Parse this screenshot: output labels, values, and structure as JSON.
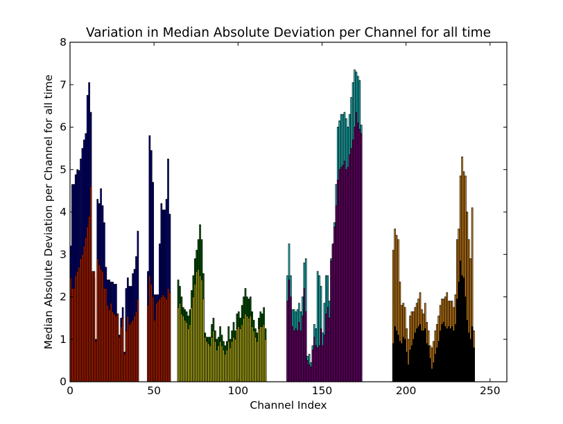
{
  "chart_data": {
    "type": "bar",
    "title": "Variation in Median Absolute Deviation per Channel for all time",
    "xlabel": "Channel Index",
    "ylabel": "Median Absolute Deviation per Channel for all time",
    "xlim": [
      0,
      260
    ],
    "ylim": [
      0,
      8
    ],
    "x_ticks": [
      "0",
      "50",
      "100",
      "150",
      "200",
      "250"
    ],
    "y_ticks": [
      "0",
      "1",
      "2",
      "3",
      "4",
      "5",
      "6",
      "7",
      "8"
    ],
    "grid": false,
    "legend": "none",
    "layers": [
      {
        "start": 0,
        "color": "#00008b",
        "values": [
          3.2,
          4.65,
          4.65,
          4.88,
          5.0,
          4.98,
          5.25,
          5.5,
          5.7,
          5.85,
          6.75,
          7.05,
          6.35,
          2.5,
          2.45,
          1.0,
          4.3,
          4.2,
          4.55,
          4.15,
          3.75,
          2.7,
          2.4,
          2.4,
          2.35,
          2.35,
          2.3,
          2.3,
          1.6,
          1.1,
          1.5,
          1.75,
          0.7,
          2.2,
          2.45,
          2.25,
          2.25,
          2.55,
          2.65,
          2.95,
          3.55,
          0,
          0,
          0,
          0,
          0,
          0,
          0,
          0,
          0,
          0,
          0,
          0,
          0,
          0,
          0,
          0,
          0,
          0,
          0,
          0,
          0,
          0,
          0,
          0,
          0,
          0,
          0,
          0,
          0,
          0,
          0,
          0,
          0,
          0,
          0,
          0,
          0,
          0,
          0,
          0,
          0,
          0,
          0,
          0,
          0,
          0,
          0,
          0,
          0,
          0,
          0,
          0,
          0,
          0,
          0,
          0,
          0,
          0,
          0,
          0,
          0,
          0,
          0,
          0,
          0,
          0,
          0,
          0,
          0,
          0,
          0,
          0,
          0,
          0,
          0,
          0,
          0,
          0,
          0,
          0,
          0,
          0,
          0,
          0,
          0,
          0,
          0,
          0,
          0,
          0,
          0,
          0,
          0,
          0,
          0,
          0,
          0,
          0,
          0,
          0,
          0,
          0,
          0,
          0,
          0,
          0,
          0,
          0,
          0,
          0,
          0,
          0,
          0,
          0,
          0,
          0,
          0,
          0,
          0,
          0,
          0,
          0,
          0,
          0,
          0,
          0,
          0,
          0,
          0,
          0,
          0,
          0,
          0,
          0,
          0,
          0,
          0,
          0,
          0,
          0,
          0,
          0,
          0,
          0,
          0,
          0,
          0,
          0,
          0,
          0,
          0,
          0,
          0,
          0,
          0,
          0,
          0,
          0,
          0,
          0,
          0,
          0,
          0,
          0,
          0,
          0,
          0,
          0,
          0,
          0,
          0,
          0,
          0,
          0,
          0,
          0,
          0,
          0,
          0,
          0,
          0,
          0,
          0,
          0,
          0,
          0,
          0,
          0,
          0,
          0,
          0,
          0,
          0,
          0,
          0,
          0,
          0,
          0,
          0,
          0,
          0,
          0,
          0,
          0,
          0,
          0,
          0,
          0,
          0,
          0,
          0,
          0,
          0,
          0,
          0,
          0,
          0,
          0,
          0,
          0,
          0,
          0,
          0,
          0,
          0,
          0,
          0,
          0,
          0,
          0,
          0,
          0,
          0,
          0,
          0,
          0,
          0,
          0,
          0,
          0,
          0,
          0,
          0,
          0,
          0,
          0,
          0,
          0,
          0,
          0,
          0,
          0
        ]
      },
      {
        "start": 46,
        "color": "#00008b",
        "values": [
          2.6,
          5.8,
          5.45,
          4.7,
          2.05,
          2.05,
          2.05,
          3.25,
          4.2,
          4.05,
          4.05,
          4.3,
          5.25,
          3.95
        ]
      },
      {
        "start": 0,
        "color": "#cc2200",
        "values": [
          2.45,
          2.2,
          2.2,
          2.5,
          2.6,
          2.7,
          2.9,
          3.0,
          3.2,
          3.4,
          3.65,
          3.9,
          4.6,
          2.6,
          2.6,
          0.95,
          2.9,
          2.75,
          2.65,
          2.6,
          2.2,
          2.2,
          1.8,
          1.7,
          1.85,
          1.65,
          1.6,
          1.55,
          1.6,
          1.05,
          1.3,
          1.5,
          0.65,
          1.2,
          1.55,
          1.35,
          1.4,
          1.45,
          1.55,
          1.65,
          1.95
        ]
      },
      {
        "start": 46,
        "color": "#cc2200",
        "values": [
          1.8,
          2.5,
          2.3,
          2.0,
          1.45,
          1.85,
          1.9,
          1.95,
          2.0,
          2.05,
          2.0,
          1.95,
          2.2,
          2.1
        ]
      },
      {
        "start": 64,
        "color": "#006400",
        "values": [
          2.4,
          2.25,
          2.0,
          1.75,
          1.7,
          1.65,
          1.55,
          1.7,
          2.15,
          2.5,
          2.9,
          3.1,
          3.35,
          3.7,
          3.35,
          2.55,
          1.15,
          1.05,
          1.05,
          1.05,
          1.35,
          1.5,
          1.2,
          1.0,
          1.05,
          1.3,
          1.1,
          0.95,
          0.85,
          0.95,
          1.3,
          1.0,
          1.2,
          1.4,
          1.2,
          1.6,
          1.65,
          1.5,
          1.8,
          2.0,
          2.2,
          2.0,
          1.95,
          2.0,
          1.65,
          1.45,
          1.25,
          1.15,
          1.5,
          1.65,
          1.6,
          1.75,
          1.25
        ]
      },
      {
        "start": 64,
        "color": "#c8c81e",
        "values": [
          1.75,
          1.85,
          1.6,
          1.55,
          1.45,
          1.4,
          1.25,
          1.35,
          1.75,
          2.0,
          2.3,
          2.6,
          2.65,
          2.5,
          2.4,
          1.95,
          1.05,
          0.95,
          0.9,
          0.85,
          1.05,
          1.2,
          0.95,
          0.75,
          0.85,
          0.95,
          0.85,
          0.75,
          0.65,
          0.75,
          0.95,
          0.8,
          0.95,
          1.05,
          1.0,
          1.25,
          1.3,
          1.25,
          1.35,
          1.5,
          1.6,
          1.55,
          1.5,
          1.55,
          1.3,
          1.2,
          1.05,
          0.95,
          1.25,
          1.3,
          1.3,
          1.35,
          1.0
        ]
      },
      {
        "start": 129,
        "color": "#22cccc",
        "values": [
          2.5,
          3.25,
          2.5,
          1.7,
          1.7,
          1.65,
          1.7,
          1.85,
          1.65,
          2.0,
          2.8,
          2.9,
          0.6,
          0.65,
          0.45,
          0.85,
          1.35,
          1.25,
          2.6,
          2.5,
          2.25,
          1.15,
          1.85,
          2.5,
          2.5,
          1.9,
          2.9,
          3.2,
          3.75,
          4.65,
          6.0,
          6.15,
          6.3,
          6.3,
          6.35,
          6.2,
          6.0,
          6.3,
          6.7,
          7.05,
          7.35,
          7.3,
          7.2,
          7.1,
          6.05
        ]
      },
      {
        "start": 129,
        "color": "#800080",
        "values": [
          1.9,
          2.4,
          2.0,
          1.3,
          1.2,
          1.25,
          1.2,
          1.4,
          1.2,
          1.55,
          2.2,
          1.65,
          0.5,
          0.4,
          0.35,
          0.75,
          1.05,
          0.85,
          0.8,
          0.85,
          1.25,
          0.85,
          1.1,
          1.6,
          1.75,
          1.5,
          2.85,
          3.25,
          3.65,
          4.15,
          4.75,
          5.0,
          5.05,
          5.1,
          5.2,
          5.0,
          5.05,
          5.35,
          5.5,
          5.7,
          6.0,
          6.35,
          6.1,
          5.95,
          5.85
        ]
      },
      {
        "start": 192,
        "color": "#e08c1a",
        "values": [
          3.1,
          3.6,
          3.45,
          3.35,
          2.35,
          1.8,
          1.85,
          1.75,
          1.25,
          1.0,
          1.55,
          1.65,
          1.65,
          1.75,
          1.85,
          1.95,
          2.1,
          1.7,
          1.6,
          1.85,
          1.4,
          1.2,
          0.85,
          0.8,
          0.95,
          1.2,
          1.35,
          1.55,
          1.8,
          1.95,
          1.95,
          2.0,
          2.1,
          1.9,
          1.9,
          1.9,
          1.75,
          2.05,
          3.35,
          3.6,
          4.85,
          5.3,
          4.95,
          4.85,
          4.0,
          3.35,
          2.9,
          4.1,
          1.2
        ]
      },
      {
        "start": 192,
        "color": "#000000",
        "values": [
          0.9,
          1.3,
          1.2,
          1.1,
          0.95,
          0.9,
          1.05,
          1.0,
          0.7,
          0.4,
          0.75,
          0.85,
          1.0,
          1.15,
          1.25,
          1.3,
          1.35,
          1.2,
          1.2,
          1.25,
          0.9,
          0.85,
          0.55,
          0.3,
          0.45,
          0.65,
          0.8,
          0.95,
          1.2,
          1.35,
          1.4,
          1.3,
          1.25,
          1.3,
          1.25,
          1.3,
          1.2,
          1.35,
          1.95,
          2.35,
          2.85,
          2.5,
          2.45,
          2.0,
          1.45,
          1.15,
          1.0,
          1.3,
          0.8
        ]
      }
    ]
  }
}
